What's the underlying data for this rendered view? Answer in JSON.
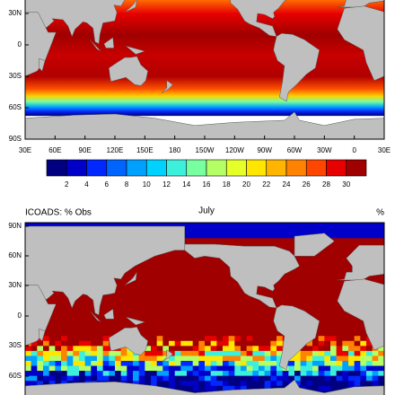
{
  "top_map": {
    "lat_labels": [
      "30N",
      "0",
      "30S",
      "60S",
      "90S"
    ],
    "lon_labels": [
      "30E",
      "60E",
      "90E",
      "120E",
      "150E",
      "180",
      "150W",
      "120W",
      "90W",
      "60W",
      "30W",
      "0",
      "30E"
    ]
  },
  "colorbar": {
    "labels": [
      2,
      4,
      6,
      8,
      10,
      12,
      14,
      16,
      18,
      20,
      22,
      24,
      26,
      28,
      30
    ],
    "colors": [
      "#000080",
      "#0000c8",
      "#0028ff",
      "#0064ff",
      "#00a0ff",
      "#00d2ff",
      "#3cf0dc",
      "#78ffa0",
      "#b4ff64",
      "#e6ff28",
      "#ffe600",
      "#ffb400",
      "#ff8200",
      "#ff4600",
      "#e60000",
      "#a00000"
    ]
  },
  "bottom_map": {
    "title": "ICOADS: % Obs",
    "month": "July",
    "units": "%",
    "lat_labels": [
      "90N",
      "60N",
      "30N",
      "0",
      "30S",
      "60S"
    ]
  }
}
